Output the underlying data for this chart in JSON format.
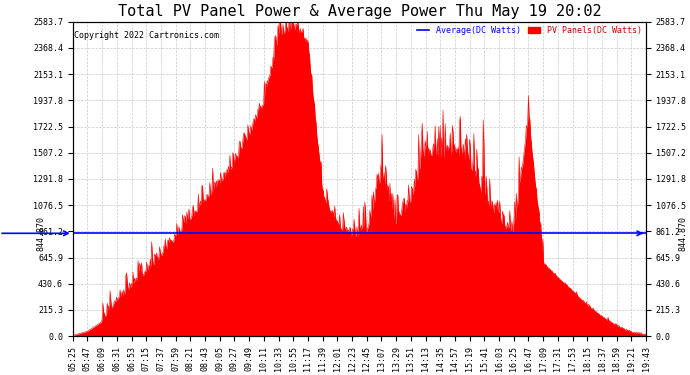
{
  "title": "Total PV Panel Power & Average Power Thu May 19 20:02",
  "copyright": "Copyright 2022 Cartronics.com",
  "legend_avg": "Average(DC Watts)",
  "legend_pv": "PV Panels(DC Watts)",
  "avg_value": 844.87,
  "avg_label": "844.870",
  "ymax": 2583.7,
  "yticks": [
    0.0,
    215.3,
    430.6,
    645.9,
    861.2,
    1076.5,
    1291.8,
    1507.2,
    1722.5,
    1937.8,
    2153.1,
    2368.4,
    2583.7
  ],
  "fill_color": "#FF0000",
  "avg_line_color": "#0000FF",
  "grid_color": "#BBBBBB",
  "background_color": "#FFFFFF",
  "title_fontsize": 11,
  "tick_fontsize": 6,
  "time_labels": [
    "05:25",
    "05:47",
    "06:09",
    "06:31",
    "06:53",
    "07:15",
    "07:37",
    "07:59",
    "08:21",
    "08:43",
    "09:05",
    "09:27",
    "09:49",
    "10:11",
    "10:33",
    "10:55",
    "11:17",
    "11:39",
    "12:01",
    "12:23",
    "12:45",
    "13:07",
    "13:29",
    "13:51",
    "14:13",
    "14:35",
    "14:57",
    "15:19",
    "15:41",
    "16:03",
    "16:25",
    "16:47",
    "17:09",
    "17:31",
    "17:53",
    "18:15",
    "18:37",
    "18:59",
    "19:21",
    "19:43"
  ]
}
